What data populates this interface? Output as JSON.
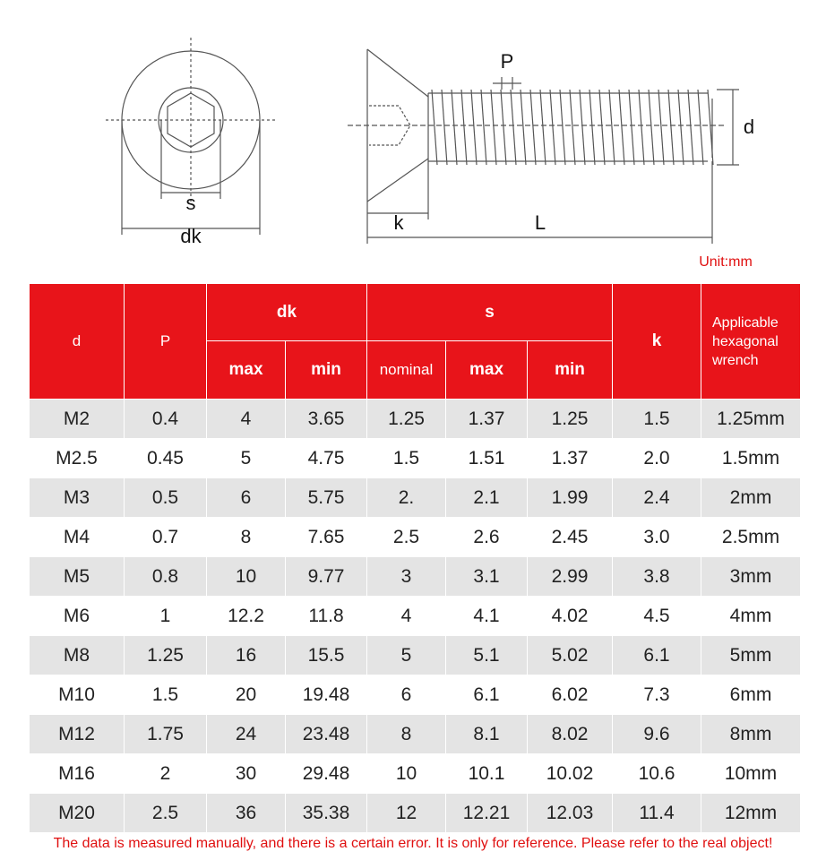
{
  "diagram": {
    "labels": {
      "s": "s",
      "dk": "dk",
      "P": "P",
      "d": "d",
      "k": "k",
      "L": "L"
    }
  },
  "unit": "Unit:mm",
  "table": {
    "header": {
      "d": "d",
      "P": "P",
      "dk": "dk",
      "dk_sub": [
        "max",
        "min"
      ],
      "s": "s",
      "s_sub": [
        "nominal",
        "max",
        "min"
      ],
      "k": "k",
      "wrench": "Applicable hexagonal wrench"
    },
    "rows": [
      [
        "M2",
        "0.4",
        "4",
        "3.65",
        "1.25",
        "1.37",
        "1.25",
        "1.5",
        "1.25mm"
      ],
      [
        "M2.5",
        "0.45",
        "5",
        "4.75",
        "1.5",
        "1.51",
        "1.37",
        "2.0",
        "1.5mm"
      ],
      [
        "M3",
        "0.5",
        "6",
        "5.75",
        "2.",
        "2.1",
        "1.99",
        "2.4",
        "2mm"
      ],
      [
        "M4",
        "0.7",
        "8",
        "7.65",
        "2.5",
        "2.6",
        "2.45",
        "3.0",
        "2.5mm"
      ],
      [
        "M5",
        "0.8",
        "10",
        "9.77",
        "3",
        "3.1",
        "2.99",
        "3.8",
        "3mm"
      ],
      [
        "M6",
        "1",
        "12.2",
        "11.8",
        "4",
        "4.1",
        "4.02",
        "4.5",
        "4mm"
      ],
      [
        "M8",
        "1.25",
        "16",
        "15.5",
        "5",
        "5.1",
        "5.02",
        "6.1",
        "5mm"
      ],
      [
        "M10",
        "1.5",
        "20",
        "19.48",
        "6",
        "6.1",
        "6.02",
        "7.3",
        "6mm"
      ],
      [
        "M12",
        "1.75",
        "24",
        "23.48",
        "8",
        "8.1",
        "8.02",
        "9.6",
        "8mm"
      ],
      [
        "M16",
        "2",
        "30",
        "29.48",
        "10",
        "10.1",
        "10.02",
        "10.6",
        "10mm"
      ],
      [
        "M20",
        "2.5",
        "36",
        "35.38",
        "12",
        "12.21",
        "12.03",
        "11.4",
        "12mm"
      ]
    ]
  },
  "footnote": "The data is measured manually, and there is a certain error. It is only for reference. Please refer to the real object!"
}
